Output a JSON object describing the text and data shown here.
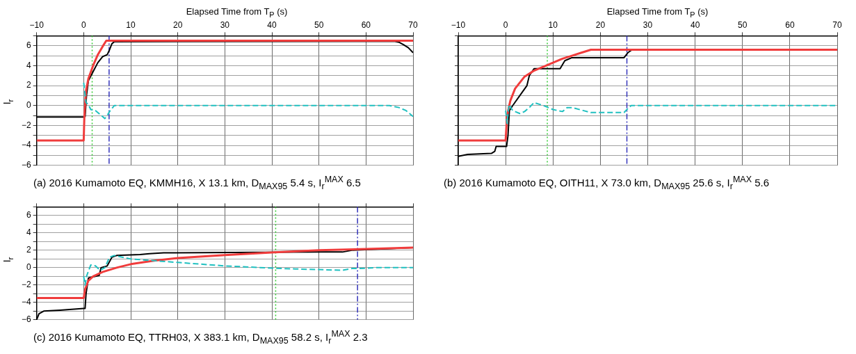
{
  "chart_data": [
    {
      "type": "line",
      "title": "(a) 2016 Kumamoto EQ, KMMH16, X 13.1 km, D$_{MAX95}$ 5.4 s, I$_{r}$$^{MAX}$ 6.5",
      "xlabel": "Elapsed Time from T$_{P}$ (s)",
      "ylabel": "I$_{r}$",
      "xlim": [
        -10,
        70
      ],
      "xticks": [
        -10,
        0,
        10,
        20,
        30,
        40,
        50,
        60,
        70
      ],
      "ylim": [
        -6,
        7
      ],
      "yticks": [
        -6,
        {
          "value": -5,
          "label": null
        },
        -4,
        {
          "value": -3,
          "label": null
        },
        -2,
        {
          "value": -1,
          "label": null
        },
        0,
        {
          "value": 1,
          "label": null
        },
        2,
        {
          "value": 3,
          "label": null
        },
        4,
        {
          "value": 5,
          "label": null
        },
        6,
        {
          "value": 7,
          "label": null
        }
      ],
      "grid": true,
      "legend": false,
      "marker": "none",
      "series": [
        {
          "color": "#000000",
          "line_style": "solid",
          "x": [
            -10,
            0,
            0.3,
            0.6,
            1,
            2,
            3,
            4,
            5,
            5.5,
            6,
            6.5,
            66,
            67,
            68,
            69,
            70
          ],
          "values": [
            -1.15,
            -1.15,
            -1.1,
            1,
            2.5,
            3.4,
            4.3,
            4.9,
            5.1,
            5.6,
            6.2,
            6.4,
            6.45,
            6.35,
            6.1,
            5.8,
            5.3
          ]
        },
        {
          "color": "#f03c3c",
          "line_style": "solid",
          "x": [
            -10,
            0,
            0.15,
            0.5,
            1,
            2,
            3,
            4,
            4.8,
            70
          ],
          "values": [
            -3.5,
            -3.5,
            -1,
            1.5,
            2.7,
            4,
            5.1,
            5.9,
            6.5,
            6.5
          ]
        },
        {
          "color": "#20c0c0",
          "line_style": "dashed",
          "x": [
            0,
            0.2,
            0.5,
            1,
            1.5,
            2.5,
            3.5,
            4.5,
            5,
            5.5,
            6.5,
            65,
            67,
            68.5,
            70
          ],
          "values": [
            2.3,
            1.5,
            0.3,
            0.1,
            -0.4,
            -0.5,
            -0.9,
            -1.3,
            -1,
            -0.6,
            0,
            0,
            -0.2,
            -0.5,
            -1.1
          ]
        }
      ],
      "ref_lines": [
        {
          "axis": "x",
          "value": 1.8,
          "color": "#33cc33",
          "line_style": "dotted"
        },
        {
          "axis": "x",
          "value": 5.4,
          "color": "#3333bb",
          "line_style": "dashed"
        }
      ]
    },
    {
      "type": "line",
      "title": "(b) 2016 Kumamoto EQ, OITH11, X 73.0 km, D$_{MAX95}$ 25.6 s, I$_{r}$$^{MAX}$ 5.6",
      "xlabel": "Elapsed Time from T$_{P}$ (s)",
      "xlim": [
        -10,
        70
      ],
      "xticks": [
        -10,
        0,
        10,
        20,
        30,
        40,
        50,
        60,
        70
      ],
      "ylim": [
        -6,
        7
      ],
      "yticks": [
        -6,
        {
          "value": -5,
          "label": null
        },
        -4,
        {
          "value": -3,
          "label": null
        },
        -2,
        {
          "value": -1,
          "label": null
        },
        0,
        {
          "value": 1,
          "label": null
        },
        2,
        {
          "value": 3,
          "label": null
        },
        4,
        {
          "value": 5,
          "label": null
        },
        6,
        {
          "value": 7,
          "label": null
        }
      ],
      "tick_labels": "x",
      "grid": true,
      "legend": false,
      "marker": "none",
      "series": [
        {
          "color": "#000000",
          "line_style": "solid",
          "x": [
            -10,
            -8,
            -3,
            -2.3,
            -2,
            0.2,
            0.5,
            0.8,
            1.5,
            3,
            4.5,
            5,
            6,
            11.5,
            12.5,
            14,
            25,
            25.8,
            26.7,
            70
          ],
          "values": [
            -5.1,
            -4.9,
            -4.8,
            -4.6,
            -4.1,
            -4.1,
            -3,
            -0.5,
            0,
            1,
            2,
            3,
            3.7,
            3.7,
            4.5,
            4.8,
            4.8,
            5.3,
            5.6,
            5.6
          ]
        },
        {
          "color": "#f03c3c",
          "line_style": "solid",
          "x": [
            -10,
            0,
            0.3,
            1,
            2,
            4,
            6,
            8,
            10,
            12,
            14,
            16,
            18,
            70
          ],
          "values": [
            -3.5,
            -3.5,
            -1,
            0.5,
            1.7,
            2.9,
            3.5,
            3.9,
            4.3,
            4.7,
            5,
            5.3,
            5.6,
            5.6
          ]
        },
        {
          "color": "#20c0c0",
          "line_style": "dashed",
          "x": [
            0,
            0.3,
            0.7,
            1.5,
            3,
            4,
            5,
            6,
            8,
            10,
            12,
            13,
            14,
            18,
            25,
            25.8,
            26.5,
            70
          ],
          "values": [
            -0.5,
            -1.8,
            0.1,
            -0.5,
            -0.8,
            -0.6,
            -0.2,
            0.3,
            0,
            -0.4,
            -0.6,
            -0.2,
            -0.2,
            -0.7,
            -0.7,
            -0.3,
            0,
            0
          ]
        }
      ],
      "ref_lines": [
        {
          "axis": "x",
          "value": 8.8,
          "color": "#33cc33",
          "line_style": "dotted"
        },
        {
          "axis": "x",
          "value": 25.6,
          "color": "#3333bb",
          "line_style": "dashed"
        }
      ]
    },
    {
      "type": "line",
      "title": "(c) 2016 Kumamoto EQ, TTRH03, X 383.1 km, D$_{MAX95}$ 58.2 s, I$_{r}$$^{MAX}$ 2.3",
      "ylabel": "I$_{r}$",
      "xlim": [
        -10,
        70
      ],
      "xticks": [
        -10,
        0,
        10,
        20,
        30,
        40,
        50,
        60,
        70
      ],
      "ylim": [
        -6,
        7
      ],
      "yticks": [
        -6,
        {
          "value": -5,
          "label": null
        },
        -4,
        {
          "value": -3,
          "label": null
        },
        -2,
        {
          "value": -1,
          "label": null
        },
        0,
        {
          "value": 1,
          "label": null
        },
        2,
        {
          "value": 3,
          "label": null
        },
        4,
        {
          "value": 5,
          "label": null
        },
        6,
        {
          "value": 7,
          "label": null
        }
      ],
      "tick_labels": "y",
      "grid": true,
      "legend": false,
      "marker": "none",
      "series": [
        {
          "color": "#000000",
          "line_style": "solid",
          "x": [
            -10,
            -9.5,
            -8.5,
            -5,
            0,
            0.3,
            0.5,
            1,
            2.5,
            3.3,
            3.7,
            5,
            6,
            7,
            12,
            14,
            17,
            50,
            55,
            57,
            70
          ],
          "values": [
            -6,
            -5.3,
            -5,
            -4.9,
            -4.7,
            -4.7,
            -3,
            -1.2,
            -1,
            -0.9,
            0,
            0.2,
            1.2,
            1.4,
            1.5,
            1.6,
            1.7,
            1.8,
            1.8,
            2,
            2.3
          ]
        },
        {
          "color": "#f03c3c",
          "line_style": "solid",
          "x": [
            -10,
            0,
            0.3,
            1,
            2,
            4,
            7,
            10,
            15,
            20,
            30,
            40,
            50,
            60,
            70
          ],
          "values": [
            -3.5,
            -3.5,
            -2.5,
            -1.5,
            -1,
            -0.5,
            0,
            0.4,
            0.8,
            1.1,
            1.45,
            1.75,
            2,
            2.15,
            2.3
          ]
        },
        {
          "color": "#20c0c0",
          "line_style": "dashed",
          "x": [
            0,
            0.3,
            0.6,
            1,
            1.5,
            2.5,
            3.5,
            4.5,
            5.5,
            6.5,
            10,
            15,
            20,
            30,
            40,
            45,
            55,
            57,
            58.5,
            62,
            70
          ],
          "values": [
            -1,
            -2,
            -1,
            -0.4,
            0.3,
            0.2,
            -0.3,
            0,
            1.2,
            1.4,
            1,
            0.8,
            0.6,
            0.2,
            -0.05,
            -0.15,
            -0.3,
            -0.1,
            -0.1,
            0,
            0
          ]
        }
      ],
      "ref_lines": [
        {
          "axis": "x",
          "value": 40.8,
          "color": "#33cc33",
          "line_style": "dotted"
        },
        {
          "axis": "x",
          "value": 58.2,
          "color": "#3333bb",
          "line_style": "dashed"
        }
      ]
    }
  ]
}
